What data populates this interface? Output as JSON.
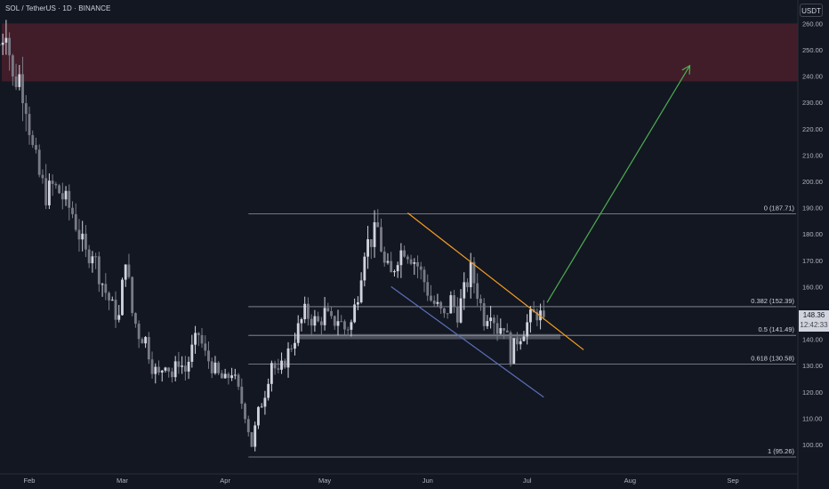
{
  "header": {
    "symbol_title": "SOL / TetherUS · 1D · BINANCE",
    "currency_label": "USDT"
  },
  "price_tag": {
    "last_price": "148.36",
    "countdown": "12:42:33"
  },
  "colors": {
    "background": "#131722",
    "bull": "#d1d4dc",
    "bear": "#787b86",
    "resistance_zone": "#4a1e2a",
    "fib_lines": "#b2b5be",
    "support_zone": "#787b86",
    "downtrend_top": "#f59e23",
    "downtrend_bottom": "#5b6fb8",
    "projection_arrow": "#4caf50"
  },
  "chart_data": {
    "type": "candlestick",
    "title": "SOL / TetherUS · 1D · BINANCE",
    "ylim": [
      93,
      262
    ],
    "y_ticks": [
      100,
      110,
      120,
      130,
      140,
      150,
      160,
      170,
      180,
      190,
      200,
      210,
      220,
      230,
      240,
      250,
      260
    ],
    "x_ticks": [
      "Feb",
      "Mar",
      "Apr",
      "May",
      "Jun",
      "Jul",
      "Aug",
      "Sep"
    ],
    "x_range_days": [
      0,
      227
    ],
    "x_tick_days": [
      9,
      37,
      68,
      98,
      129,
      159,
      190,
      221
    ],
    "resistance_zone": {
      "from": 238,
      "to": 260
    },
    "support_zone": {
      "from": 140,
      "to": 142,
      "day_start": 89,
      "day_end": 169
    },
    "fib_levels": [
      {
        "ratio": "0",
        "value": 187.71,
        "label": "0 (187.71)"
      },
      {
        "ratio": "0.382",
        "value": 152.39,
        "label": "0.382 (152.39)"
      },
      {
        "ratio": "0.5",
        "value": 141.49,
        "label": "0.5 (141.49)"
      },
      {
        "ratio": "0.618",
        "value": 130.58,
        "label": "0.618 (130.58)"
      },
      {
        "ratio": "1",
        "value": 95.26,
        "label": "1 (95.26)"
      }
    ],
    "fib_day_start": 75,
    "trendlines": [
      {
        "name": "downtrend-top",
        "from": [
          123,
          188
        ],
        "to": [
          176,
          136
        ]
      },
      {
        "name": "downtrend-bottom",
        "from": [
          118,
          160
        ],
        "to": [
          164,
          118
        ]
      }
    ],
    "projection_arrow": {
      "from": [
        165,
        154
      ],
      "to": [
        208,
        244
      ]
    },
    "anchors": [
      [
        0,
        252
      ],
      [
        2,
        260
      ],
      [
        4,
        238
      ],
      [
        6,
        240
      ],
      [
        8,
        230
      ],
      [
        10,
        212
      ],
      [
        12,
        202
      ],
      [
        14,
        195
      ],
      [
        16,
        198
      ],
      [
        18,
        196
      ],
      [
        20,
        192
      ],
      [
        22,
        188
      ],
      [
        24,
        180
      ],
      [
        26,
        172
      ],
      [
        28,
        174
      ],
      [
        30,
        165
      ],
      [
        32,
        158
      ],
      [
        34,
        152
      ],
      [
        36,
        148
      ],
      [
        38,
        172
      ],
      [
        40,
        150
      ],
      [
        42,
        142
      ],
      [
        44,
        140
      ],
      [
        46,
        130
      ],
      [
        48,
        126
      ],
      [
        50,
        132
      ],
      [
        52,
        126
      ],
      [
        54,
        132
      ],
      [
        56,
        128
      ],
      [
        58,
        136
      ],
      [
        60,
        142
      ],
      [
        62,
        134
      ],
      [
        64,
        130
      ],
      [
        66,
        126
      ],
      [
        68,
        124
      ],
      [
        70,
        128
      ],
      [
        72,
        120
      ],
      [
        74,
        112
      ],
      [
        76,
        100
      ],
      [
        78,
        112
      ],
      [
        80,
        120
      ],
      [
        82,
        132
      ],
      [
        84,
        126
      ],
      [
        86,
        132
      ],
      [
        88,
        138
      ],
      [
        90,
        144
      ],
      [
        92,
        150
      ],
      [
        94,
        148
      ],
      [
        96,
        146
      ],
      [
        98,
        150
      ],
      [
        100,
        146
      ],
      [
        102,
        148
      ],
      [
        104,
        144
      ],
      [
        106,
        146
      ],
      [
        108,
        158
      ],
      [
        110,
        175
      ],
      [
        112,
        178
      ],
      [
        114,
        182
      ],
      [
        116,
        168
      ],
      [
        118,
        164
      ],
      [
        120,
        172
      ],
      [
        122,
        175
      ],
      [
        124,
        172
      ],
      [
        126,
        168
      ],
      [
        128,
        162
      ],
      [
        130,
        155
      ],
      [
        132,
        152
      ],
      [
        134,
        148
      ],
      [
        136,
        155
      ],
      [
        138,
        150
      ],
      [
        140,
        158
      ],
      [
        142,
        166
      ],
      [
        144,
        158
      ],
      [
        146,
        148
      ],
      [
        148,
        152
      ],
      [
        150,
        144
      ],
      [
        152,
        146
      ],
      [
        154,
        134
      ],
      [
        156,
        140
      ],
      [
        158,
        144
      ],
      [
        160,
        148
      ],
      [
        162,
        150
      ],
      [
        164,
        148
      ]
    ]
  }
}
